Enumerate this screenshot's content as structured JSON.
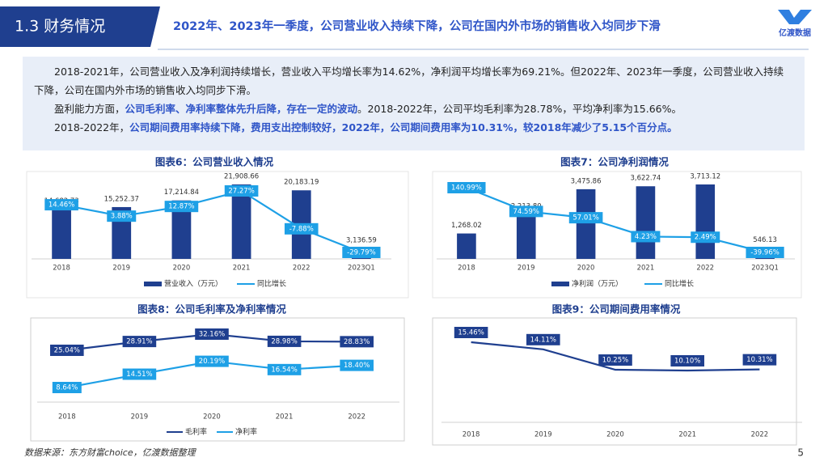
{
  "header": {
    "section": "1.3 财务情况",
    "title": "2022年、2023年一季度，公司营业收入持续下降，公司在国内外市场的销售收入均同步下滑",
    "logo": "亿渡数据"
  },
  "summary": {
    "paragraphs": [
      [
        {
          "text": "2018-2021年，公司营业收入及净利润持续增长，营业收入平均增长率为14.62%，净利润平均增长率为69.21%。但2022年、2023年一季度，公司营业收入持续下降，公司在国内外市场的销售收入均同步下滑。",
          "emphasis": false
        }
      ],
      [
        {
          "text": "盈利能力方面，",
          "emphasis": false
        },
        {
          "text": "公司毛利率、净利率整体先升后降，存在一定的波动",
          "emphasis": true
        },
        {
          "text": "。2018-2022年，公司平均毛利率为28.78%，平均净利率为15.66%。",
          "emphasis": false
        }
      ],
      [
        {
          "text": "2018-2022年，",
          "emphasis": false
        },
        {
          "text": "公司期间费用率持续下降，费用支出控制较好，2022年，公司期间费用率为10.31%，较2018年减少了5.15个百分点。",
          "emphasis": true
        }
      ]
    ]
  },
  "chart_data": [
    {
      "type": "bar",
      "title": "图表6：公司营业收入情况",
      "categories": [
        "2018",
        "2019",
        "2020",
        "2021",
        "2022",
        "2023Q1"
      ],
      "series": [
        {
          "name": "营业收入（万元）",
          "type": "bar",
          "color": "#1f3f8f",
          "values": [
            14682.73,
            15252.37,
            17214.84,
            21908.66,
            20183.19,
            3136.59
          ],
          "value_labels": [
            "14,682.73",
            "15,252.37",
            "17,214.84",
            "21,908.66",
            "20,183.19",
            "3,136.59"
          ]
        },
        {
          "name": "同比增长",
          "type": "line",
          "axis": "y2",
          "color": "#1ea0e6",
          "values": [
            14.46,
            3.88,
            12.87,
            27.27,
            -7.88,
            -29.79
          ],
          "value_labels": [
            "14.46%",
            "3.88%",
            "12.87%",
            "27.27%",
            "-7.88%",
            "-29.79%"
          ]
        }
      ]
    },
    {
      "type": "bar",
      "title": "图表7：公司净利润情况",
      "categories": [
        "2018",
        "2019",
        "2020",
        "2021",
        "2022",
        "2023Q1"
      ],
      "series": [
        {
          "name": "净利润（万元）",
          "type": "bar",
          "color": "#1f3f8f",
          "values": [
            1268.02,
            2213.8,
            3475.86,
            3622.74,
            3713.12,
            546.13
          ],
          "value_labels": [
            "1,268.02",
            "2,213.80",
            "3,475.86",
            "3,622.74",
            "3,713.12",
            "546.13"
          ]
        },
        {
          "name": "同比增长",
          "type": "line",
          "axis": "y2",
          "color": "#1ea0e6",
          "values": [
            140.99,
            74.59,
            57.01,
            4.23,
            2.49,
            -39.96
          ],
          "value_labels": [
            "140.99%",
            "74.59%",
            "57.01%",
            "4.23%",
            "2.49%",
            "-39.96%"
          ]
        }
      ]
    },
    {
      "type": "line",
      "title": "图表8：公司毛利率及净利率情况",
      "categories": [
        "2018",
        "2019",
        "2020",
        "2021",
        "2022"
      ],
      "series": [
        {
          "name": "毛利率",
          "color": "#1f3f8f",
          "values": [
            25.04,
            28.91,
            32.16,
            28.98,
            28.83
          ],
          "value_labels": [
            "25.04%",
            "28.91%",
            "32.16%",
            "28.98%",
            "28.83%"
          ]
        },
        {
          "name": "净利率",
          "color": "#1ea0e6",
          "values": [
            8.64,
            14.51,
            20.19,
            16.54,
            18.4
          ],
          "value_labels": [
            "8.64%",
            "14.51%",
            "20.19%",
            "16.54%",
            "18.40%"
          ]
        }
      ]
    },
    {
      "type": "line",
      "title": "图表9：公司期间费用率情况",
      "categories": [
        "2018",
        "2019",
        "2020",
        "2021",
        "2022"
      ],
      "series": [
        {
          "color": "#1f3f8f",
          "values": [
            15.46,
            14.11,
            10.25,
            10.1,
            10.31
          ],
          "value_labels": [
            "15.46%",
            "14.11%",
            "10.25%",
            "10.10%",
            "10.31%"
          ]
        }
      ]
    }
  ],
  "source": "数据来源：东方财富choice，亿渡数据整理",
  "page": "5"
}
